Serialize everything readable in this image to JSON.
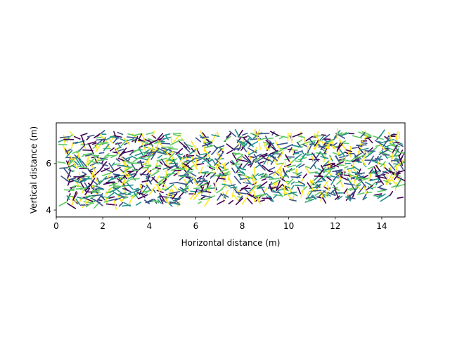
{
  "chart_data": {
    "type": "line",
    "title": "",
    "xlabel": "Horizontal distance (m)",
    "ylabel": "Vertical distance (m)",
    "xlim": [
      0,
      15
    ],
    "ylim": [
      3.7,
      7.75
    ],
    "xticks": [
      0,
      2,
      4,
      6,
      8,
      10,
      12,
      14
    ],
    "xtick_labels": [
      "0",
      "2",
      "4",
      "6",
      "8",
      "10",
      "12",
      "14"
    ],
    "yticks": [
      4,
      6
    ],
    "ytick_labels": [
      "4",
      "6"
    ],
    "grid": false,
    "legend": "none",
    "colormap": [
      "#440154",
      "#3b528b",
      "#21918c",
      "#5ec962",
      "#fde725"
    ],
    "segment_count": 1400,
    "segment_region": {
      "x_range": [
        0.2,
        14.9
      ],
      "y_bottom_left": 4.1,
      "y_bottom_right": 4.5,
      "y_top": 7.3
    },
    "segment_length_m": [
      0.15,
      0.45
    ],
    "random_seed": 20
  }
}
